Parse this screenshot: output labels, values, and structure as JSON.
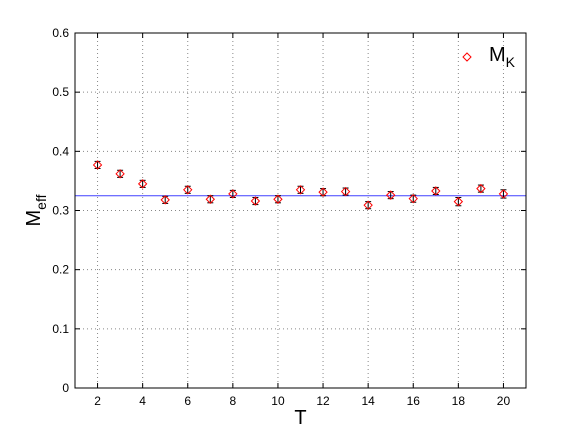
{
  "chart_data": {
    "type": "scatter",
    "title": "",
    "xlabel": "T",
    "ylabel": "M",
    "ylabel_sub": "eff",
    "xlim": [
      1,
      21
    ],
    "ylim": [
      0,
      0.6
    ],
    "xticks": [
      2,
      4,
      6,
      8,
      10,
      12,
      14,
      16,
      18,
      20
    ],
    "yticks": [
      0,
      0.1,
      0.2,
      0.3,
      0.4,
      0.5,
      0.6
    ],
    "ytick_labels": [
      "0",
      "0.1",
      "0.2",
      "0.3",
      "0.4",
      "0.5",
      "0.6"
    ],
    "grid": true,
    "legend_position": "top-right",
    "series": [
      {
        "name": "M",
        "name_sub": "K",
        "marker": "diamond",
        "color": "#ff0000",
        "x": [
          2,
          3,
          4,
          5,
          6,
          7,
          8,
          9,
          10,
          11,
          12,
          13,
          14,
          15,
          16,
          17,
          18,
          19,
          20
        ],
        "y": [
          0.377,
          0.362,
          0.345,
          0.318,
          0.335,
          0.319,
          0.328,
          0.316,
          0.319,
          0.335,
          0.331,
          0.332,
          0.309,
          0.326,
          0.32,
          0.333,
          0.315,
          0.337,
          0.328
        ],
        "err": [
          0.006,
          0.006,
          0.006,
          0.006,
          0.006,
          0.006,
          0.006,
          0.006,
          0.006,
          0.006,
          0.006,
          0.006,
          0.006,
          0.006,
          0.006,
          0.006,
          0.007,
          0.006,
          0.007
        ]
      }
    ],
    "fit_line": {
      "y": 0.325,
      "color": "#4040ff"
    }
  }
}
